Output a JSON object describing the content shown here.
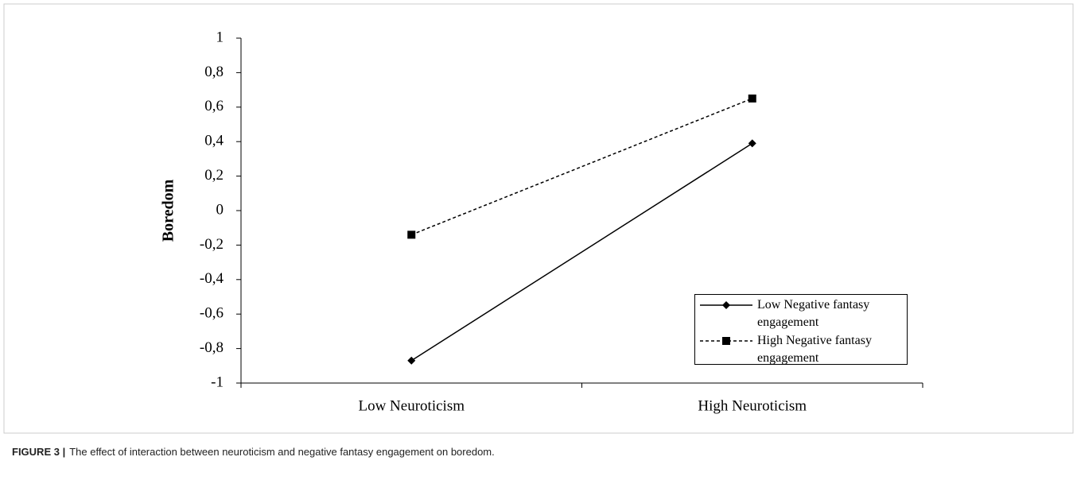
{
  "chart_data": {
    "type": "line",
    "y_label": "Boredom",
    "categories": [
      "Low Neuroticism",
      "High Neuroticism"
    ],
    "series": [
      {
        "name": "Low Negative fantasy engagement",
        "color": "#000000",
        "marker": "diamond",
        "dashed": false,
        "values": [
          -0.87,
          0.39
        ]
      },
      {
        "name": "High Negative fantasy engagement",
        "color": "#000000",
        "marker": "square",
        "dashed": true,
        "values": [
          -0.14,
          0.65
        ]
      }
    ],
    "ylim": [
      -1,
      1
    ],
    "yticks": [
      -1,
      {
        "value": -0.8,
        "label": "-0,8"
      },
      {
        "value": -0.6,
        "label": "-0,6"
      },
      {
        "value": -0.4,
        "label": "-0,4"
      },
      {
        "value": -0.2,
        "label": "-0,2"
      },
      0,
      {
        "value": 0.2,
        "label": "0,2"
      },
      {
        "value": 0.4,
        "label": "0,4"
      },
      {
        "value": 0.6,
        "label": "0,6"
      },
      {
        "value": 0.8,
        "label": "0,8"
      },
      1
    ],
    "grid": false,
    "legend": "lower right",
    "caption_label": "FIGURE 3 |",
    "caption": "The effect of interaction between neuroticism and negative fantasy engagement on boredom."
  }
}
